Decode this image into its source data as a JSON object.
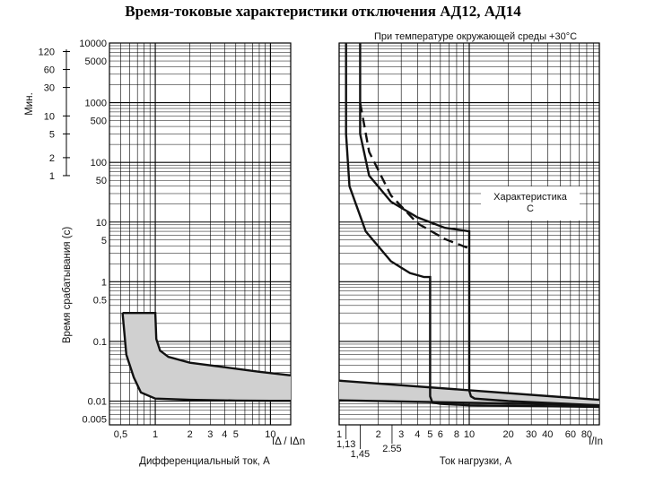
{
  "title": "Время-токовые характеристики отключения АД12, АД14",
  "temperature_note": "При температуре окружающей среды +30°С",
  "characteristic_label_line1": "Характеристика",
  "characteristic_label_line2": "С",
  "colors": {
    "curve": "#111111",
    "band_fill": "#d0d0d0",
    "grid": "#000000"
  },
  "chart_data": [
    {
      "type": "line",
      "id": "differential",
      "xlabel": "Дифференциальный ток, А",
      "x_axis_name": "IΔ / IΔn",
      "ylabel": "Время срабатывания (с)",
      "ylabel_minutes": "Мин.",
      "x_scale": "log",
      "y_scale": "log",
      "xlim": [
        0.4,
        15
      ],
      "ylim": [
        0.004,
        10000
      ],
      "x_tick_labels": [
        "0,5",
        "1",
        "2",
        "3",
        "4",
        "5",
        "10"
      ],
      "x_tick_values": [
        0.5,
        1,
        2,
        3,
        4,
        5,
        10
      ],
      "y_tick_labels": [
        "10000",
        "5000",
        "1000",
        "500",
        "100",
        "50",
        "10",
        "5",
        "1",
        "0.5",
        "0.1",
        "0.01",
        "0.005"
      ],
      "y_tick_values": [
        10000,
        5000,
        1000,
        500,
        100,
        50,
        10,
        5,
        1,
        0.5,
        0.1,
        0.01,
        0.005
      ],
      "minute_tick_labels": [
        "120",
        "60",
        "30",
        "10",
        "5",
        "2",
        "1"
      ],
      "minute_tick_values": [
        120,
        60,
        30,
        10,
        5,
        2,
        1
      ],
      "series": [
        {
          "role": "upper",
          "x": [
            0.52,
            1.0,
            1.02,
            1.1,
            1.3,
            2,
            4,
            8,
            15
          ],
          "y": [
            0.3,
            0.3,
            0.11,
            0.07,
            0.055,
            0.044,
            0.037,
            0.031,
            0.027
          ]
        },
        {
          "role": "lower",
          "x": [
            0.52,
            0.56,
            0.65,
            0.75,
            1.0,
            2,
            5,
            10,
            15
          ],
          "y": [
            0.3,
            0.06,
            0.025,
            0.014,
            0.011,
            0.0105,
            0.0102,
            0.0101,
            0.0101
          ]
        }
      ]
    },
    {
      "type": "line",
      "id": "overload",
      "xlabel": "Ток нагрузки, А",
      "x_axis_name": "I/In",
      "x_scale": "log",
      "y_scale": "log",
      "xlim": [
        1,
        100
      ],
      "ylim": [
        0.004,
        10000
      ],
      "x_tick_labels": [
        "1",
        "2",
        "3",
        "4",
        "5",
        "6",
        "8",
        "10",
        "20",
        "30",
        "40",
        "60",
        "80"
      ],
      "x_tick_values": [
        1,
        2,
        3,
        4,
        5,
        6,
        8,
        10,
        20,
        30,
        40,
        60,
        80
      ],
      "extra_x_labels": [
        {
          "text": "1,13",
          "value": 1.13
        },
        {
          "text": "1,45",
          "value": 1.45
        },
        {
          "text": "2.55",
          "value": 2.55
        }
      ],
      "series": [
        {
          "role": "lower-thermal",
          "x": [
            1.13,
            1.13,
            1.2,
            1.6,
            2.5,
            3.5,
            4.5,
            5,
            5,
            5.2,
            6,
            10,
            100
          ],
          "y": [
            10000,
            300,
            40,
            7,
            2.2,
            1.4,
            1.2,
            1.2,
            0.012,
            0.0095,
            0.009,
            0.0085,
            0.008
          ]
        },
        {
          "role": "upper-thermal",
          "x": [
            1.45,
            1.45,
            1.7,
            2.5,
            4,
            6.5,
            10,
            10,
            10.3,
            11,
            20,
            100
          ],
          "y": [
            10000,
            300,
            60,
            22,
            12,
            8,
            7,
            0.015,
            0.012,
            0.011,
            0.01,
            0.0085
          ]
        },
        {
          "role": "characteristic-C-dashed",
          "x": [
            1.45,
            1.7,
            2.5,
            4,
            6.5,
            10
          ],
          "y": [
            1000,
            150,
            28,
            9.5,
            5.2,
            3.6
          ]
        },
        {
          "role": "band-upper",
          "x": [
            1,
            100
          ],
          "y": [
            0.022,
            0.0105
          ]
        },
        {
          "role": "band-lower",
          "x": [
            1,
            100
          ],
          "y": [
            0.0103,
            0.0085
          ]
        }
      ]
    }
  ]
}
